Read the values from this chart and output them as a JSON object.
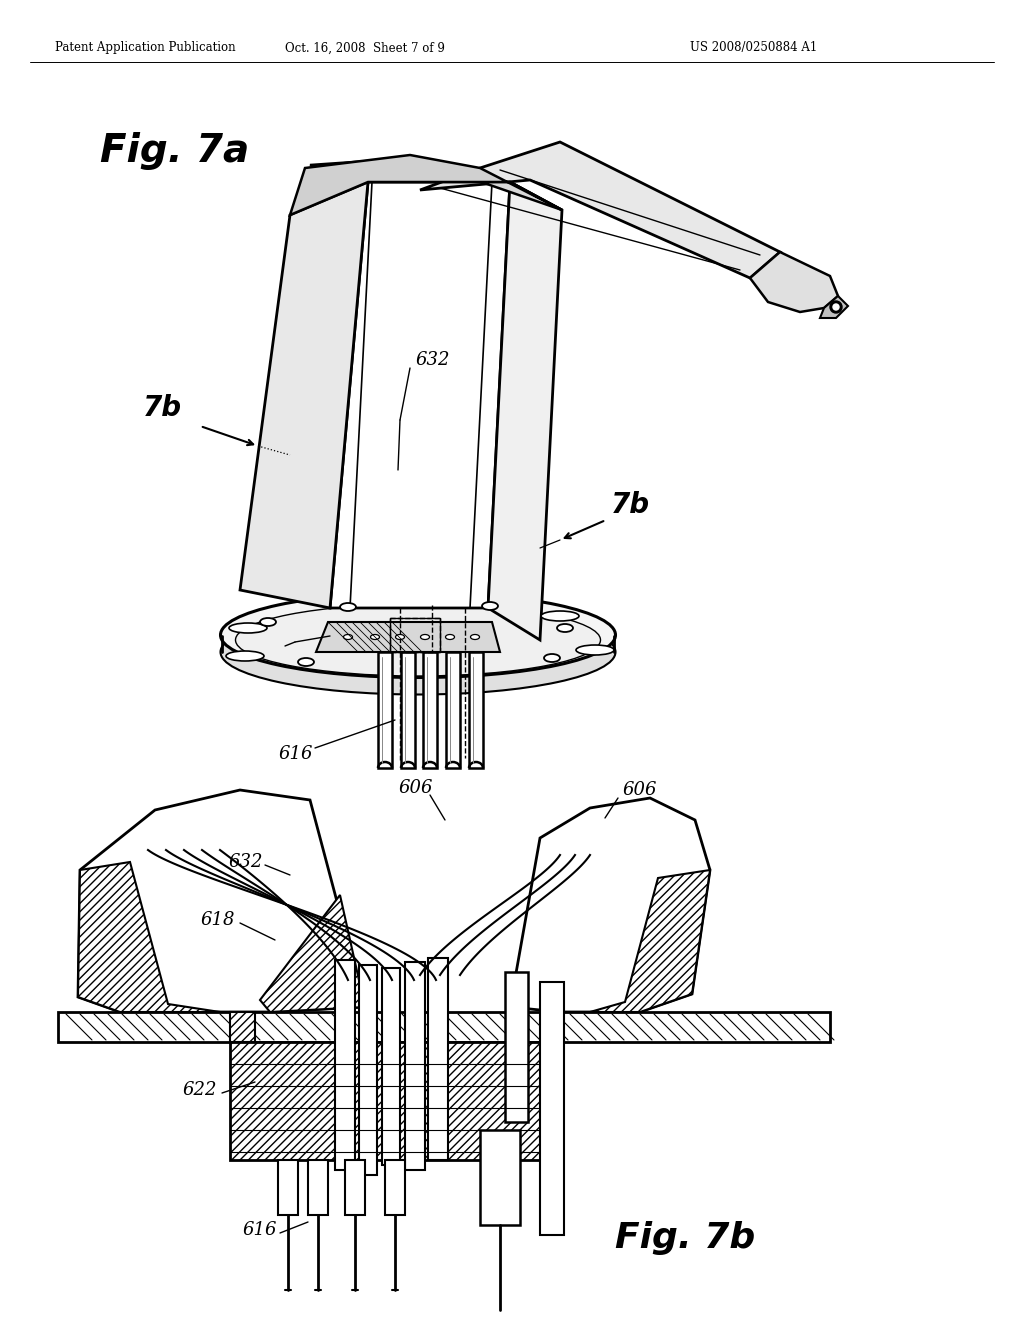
{
  "background_color": "#ffffff",
  "line_color": "#000000",
  "header_left": "Patent Application Publication",
  "header_center": "Oct. 16, 2008  Sheet 7 of 9",
  "header_right": "US 2008/0250884 A1",
  "fig7a_label": "Fig. 7a",
  "fig7b_label": "Fig. 7b",
  "label_7b_left": "7b",
  "label_7b_right": "7b",
  "label_632a": "632",
  "label_616a": "616",
  "label_606_left": "606",
  "label_606_right": "606",
  "label_632b": "632",
  "label_618": "618",
  "label_622": "622",
  "label_616b": "616"
}
